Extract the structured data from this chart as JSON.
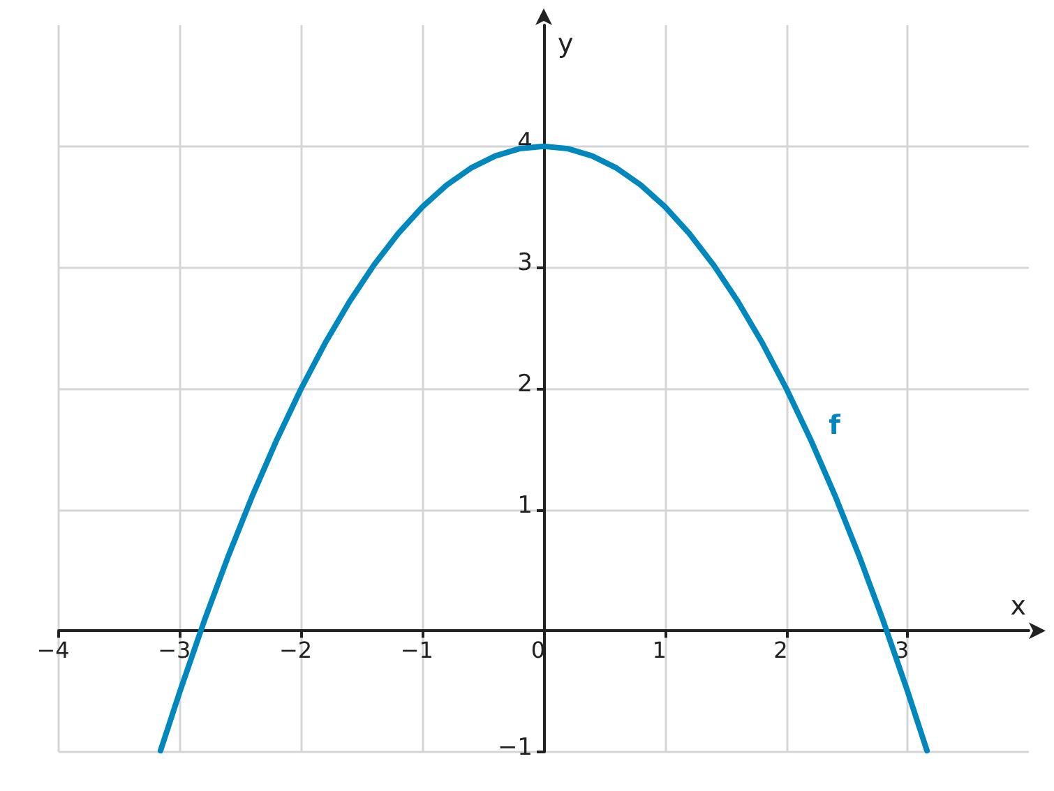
{
  "chart_data": {
    "type": "line",
    "xlabel": "x",
    "ylabel": "y",
    "xlim": [
      -4,
      4
    ],
    "ylim": [
      -1,
      5
    ],
    "xticks": [
      {
        "value": -4,
        "label": "−4"
      },
      {
        "value": -3,
        "label": "−3"
      },
      {
        "value": -2,
        "label": "−2"
      },
      {
        "value": -1,
        "label": "−1"
      },
      {
        "value": 0,
        "label": "0"
      },
      1,
      2,
      3
    ],
    "yticks": [
      {
        "value": -1,
        "label": "−1"
      },
      {
        "value": 0,
        "label": null
      },
      1,
      2,
      3,
      4
    ],
    "grid": true,
    "marker": "none",
    "line_style": "solid",
    "series": [
      {
        "name": "f",
        "color": "#0087bd",
        "x": [
          -3.16,
          -3,
          -2.8,
          -2.6,
          -2.4,
          -2.2,
          -2,
          -1.8,
          -1.6,
          -1.4,
          -1.2,
          -1,
          -0.8,
          -0.6,
          -0.4,
          -0.2,
          0,
          0.2,
          0.4,
          0.6,
          0.8,
          1,
          1.2,
          1.4,
          1.6,
          1.8,
          2,
          2.2,
          2.4,
          2.6,
          2.8,
          3,
          3.16
        ],
        "values": [
          -0.99,
          -0.5,
          0.08,
          0.62,
          1.12,
          1.58,
          2,
          2.38,
          2.72,
          3.02,
          3.28,
          3.5,
          3.68,
          3.82,
          3.92,
          3.98,
          4,
          3.98,
          3.92,
          3.82,
          3.68,
          3.5,
          3.28,
          3.02,
          2.72,
          2.38,
          2,
          1.58,
          1.12,
          0.62,
          0.08,
          -0.5,
          -0.99
        ]
      }
    ]
  }
}
